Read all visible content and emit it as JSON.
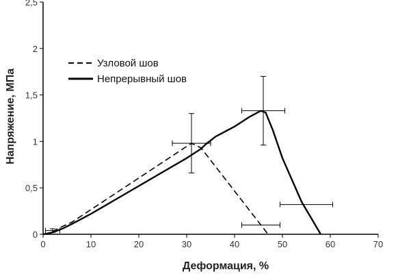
{
  "chart_data": {
    "type": "line",
    "title": "",
    "xlabel": "Деформация, %",
    "ylabel": "Напряжение, МПа",
    "xlim": [
      0,
      70
    ],
    "ylim": [
      0,
      2.5
    ],
    "x_ticks": [
      0,
      10,
      20,
      30,
      40,
      50,
      60,
      70
    ],
    "x_tick_labels": [
      "0",
      "10",
      "20",
      "30",
      "40",
      "50",
      "60",
      "70"
    ],
    "y_ticks": [
      0,
      0.5,
      1,
      1.5,
      2,
      2.5
    ],
    "y_tick_labels": [
      "0",
      "0,5",
      "1",
      "1,5",
      "2",
      "2,5"
    ],
    "grid": false,
    "legend_position": "top-left",
    "series": [
      {
        "name": "Узловой шов",
        "line_style": "dashed",
        "color": "#000000",
        "x": [
          0,
          1.5,
          3,
          6,
          31,
          33,
          47
        ],
        "y": [
          0,
          0.01,
          0.06,
          0.13,
          0.98,
          0.93,
          0
        ]
      },
      {
        "name": "Непрерывный шов",
        "line_style": "solid",
        "color": "#000000",
        "x": [
          0,
          2,
          4,
          6,
          10,
          20,
          30,
          33,
          34,
          36,
          40,
          43,
          45.5,
          46.5,
          48,
          50,
          54,
          58
        ],
        "y": [
          0,
          0.02,
          0.06,
          0.11,
          0.22,
          0.52,
          0.82,
          0.92,
          0.97,
          1.05,
          1.16,
          1.26,
          1.33,
          1.31,
          1.12,
          0.82,
          0.35,
          0
        ]
      }
    ],
    "error_bars": [
      {
        "x": 31,
        "y": 0.98,
        "x_err": 4,
        "y_err": 0.32
      },
      {
        "x": 46,
        "y": 1.33,
        "x_err": 4.5,
        "y_err": 0.37
      },
      {
        "x": 2,
        "y": 0.04,
        "x_err": 1.5,
        "y_err": 0.02
      },
      {
        "x": 45.5,
        "y": 0.1,
        "x_err": 4,
        "y_err": 0
      },
      {
        "x": 55,
        "y": 0.32,
        "x_err": 5.5,
        "y_err": 0
      }
    ]
  }
}
